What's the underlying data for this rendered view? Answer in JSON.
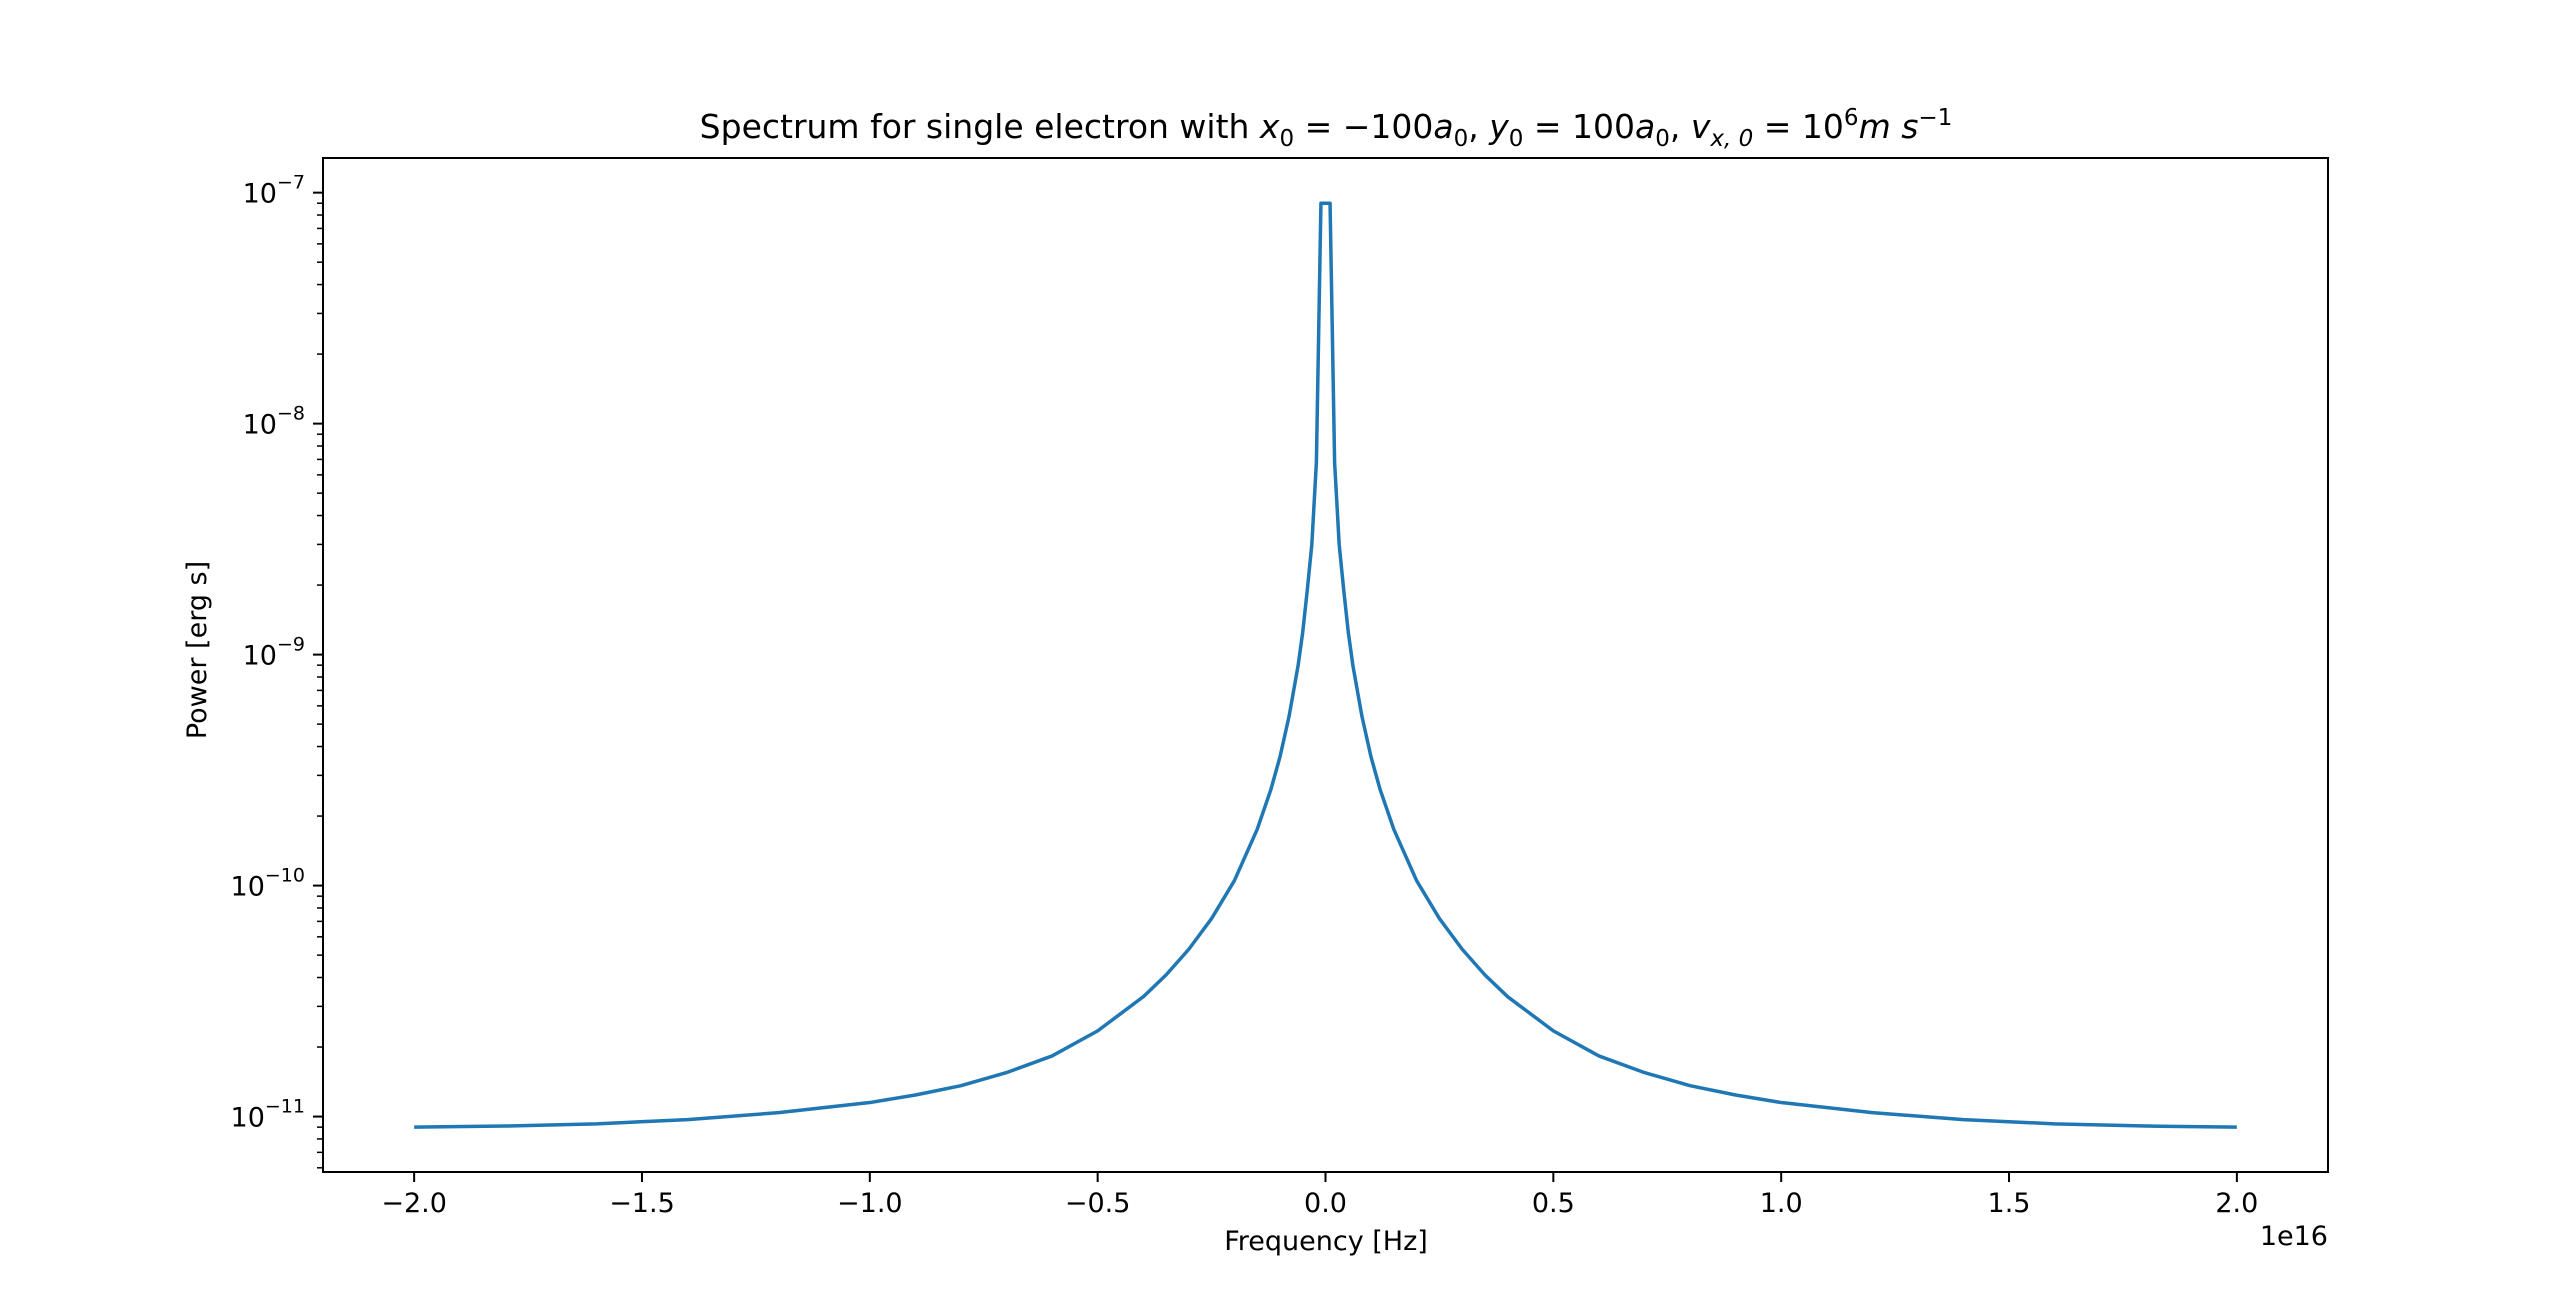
{
  "chart_data": {
    "type": "line",
    "title_prefix": "Spectrum for single electron with ",
    "title_math": {
      "x_sym": "x",
      "x_sub": "0",
      "x_eq": " = −100",
      "a1_sym": "a",
      "a1_sub": "0",
      "sep1": ", ",
      "y_sym": "y",
      "y_sub": "0",
      "y_eq": " = 100",
      "a2_sym": "a",
      "a2_sub": "0",
      "sep2": ", ",
      "v_sym": "v",
      "v_sub": "x, 0",
      "v_eq": " = 10",
      "v_exp": "6",
      "unit_m": "m",
      "unit_s": "s",
      "unit_exp": "−1"
    },
    "xlabel": "Frequency [Hz]",
    "ylabel": "Power [erg s]",
    "x_offset_label": "1e16",
    "x_scale": 1e+16,
    "xlim": [
      -2.2,
      2.2
    ],
    "ylim_log10": [
      -11.24,
      -6.85
    ],
    "yscale": "log",
    "xticks": [
      {
        "value": -2.0,
        "label": "−2.0"
      },
      {
        "value": -1.5,
        "label": "−1.5"
      },
      {
        "value": -1.0,
        "label": "−1.0"
      },
      {
        "value": -0.5,
        "label": "−0.5"
      },
      {
        "value": 0.0,
        "label": "0.0"
      },
      {
        "value": 0.5,
        "label": "0.5"
      },
      {
        "value": 1.0,
        "label": "1.0"
      },
      {
        "value": 1.5,
        "label": "1.5"
      },
      {
        "value": 2.0,
        "label": "2.0"
      }
    ],
    "yticks": [
      {
        "log10": -7,
        "base": "10",
        "exp": "−7"
      },
      {
        "log10": -8,
        "base": "10",
        "exp": "−8"
      },
      {
        "log10": -9,
        "base": "10",
        "exp": "−9"
      },
      {
        "log10": -10,
        "base": "10",
        "exp": "−10"
      },
      {
        "log10": -11,
        "base": "10",
        "exp": "−11"
      }
    ],
    "line_color": "#1f77b4",
    "grid": false,
    "series": [
      {
        "x": [
          -2.0,
          -1.8,
          -1.6,
          -1.4,
          -1.2,
          -1.0,
          -0.9,
          -0.8,
          -0.7,
          -0.6,
          -0.5,
          -0.4,
          -0.35,
          -0.3,
          -0.25,
          -0.2,
          -0.15,
          -0.12,
          -0.1,
          -0.08,
          -0.06,
          -0.05,
          -0.04,
          -0.03,
          -0.02,
          -0.01,
          0.0,
          0.01,
          0.02,
          0.03,
          0.04,
          0.05,
          0.06,
          0.08,
          0.1,
          0.12,
          0.15,
          0.2,
          0.25,
          0.3,
          0.35,
          0.4,
          0.5,
          0.6,
          0.7,
          0.8,
          0.9,
          1.0,
          1.2,
          1.4,
          1.6,
          1.8,
          2.0
        ],
        "y": [
          9e-12,
          9.1e-12,
          9.3e-12,
          9.7e-12,
          1.04e-11,
          1.15e-11,
          1.24e-11,
          1.36e-11,
          1.55e-11,
          1.83e-11,
          2.35e-11,
          3.3e-11,
          4.1e-11,
          5.3e-11,
          7.2e-11,
          1.05e-10,
          1.75e-10,
          2.6e-10,
          3.6e-10,
          5.4e-10,
          9e-10,
          1.25e-09,
          1.9e-09,
          3e-09,
          6.8e-09,
          9e-08,
          9e-08,
          9e-08,
          6.8e-09,
          3e-09,
          1.9e-09,
          1.25e-09,
          9e-10,
          5.4e-10,
          3.6e-10,
          2.6e-10,
          1.75e-10,
          1.05e-10,
          7.2e-11,
          5.3e-11,
          4.1e-11,
          3.3e-11,
          2.35e-11,
          1.83e-11,
          1.55e-11,
          1.36e-11,
          1.24e-11,
          1.15e-11,
          1.04e-11,
          9.7e-12,
          9.3e-12,
          9.1e-12,
          9e-12
        ]
      }
    ]
  }
}
